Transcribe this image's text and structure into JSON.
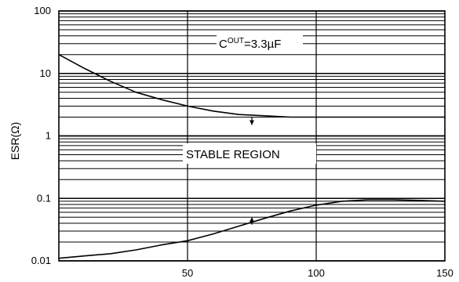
{
  "chart_data": {
    "type": "line",
    "title": "",
    "xlabel": "",
    "ylabel": "ESR(Ω)",
    "y_scale": "log",
    "xlim": [
      0,
      150
    ],
    "ylim": [
      0.01,
      100
    ],
    "grid": true,
    "x_ticks": [
      "50",
      "100",
      "150"
    ],
    "x_tick_values": [
      50,
      100,
      150
    ],
    "y_ticks": [
      "0.01",
      "0.1",
      "1",
      "10",
      "100"
    ],
    "y_tick_values": [
      0.01,
      0.1,
      1,
      10,
      100
    ],
    "series": [
      {
        "x": [
          0,
          10,
          20,
          30,
          40,
          50,
          60,
          70,
          80,
          90,
          100,
          110,
          120,
          130,
          140,
          150
        ],
        "values": [
          20,
          12,
          7.5,
          5,
          3.8,
          3.0,
          2.5,
          2.2,
          2.1,
          2.0,
          2.0,
          2.0,
          2.0,
          2.0,
          2.0,
          2.0
        ]
      },
      {
        "x": [
          0,
          10,
          20,
          30,
          40,
          50,
          60,
          70,
          80,
          90,
          100,
          110,
          120,
          130,
          140,
          150
        ],
        "values": [
          0.011,
          0.012,
          0.013,
          0.015,
          0.018,
          0.021,
          0.027,
          0.036,
          0.048,
          0.063,
          0.078,
          0.09,
          0.095,
          0.095,
          0.093,
          0.09
        ]
      }
    ],
    "annotations": [
      {
        "text_main": "C",
        "text_sup": "OUT",
        "text_rest": "=3.3µF"
      },
      {
        "text": "STABLE REGION"
      }
    ],
    "arrows": [
      {
        "x": 75,
        "from_y": 2.0,
        "to_y": 1.5
      },
      {
        "x": 75,
        "from_y": 0.038,
        "to_y": 0.05
      }
    ]
  }
}
